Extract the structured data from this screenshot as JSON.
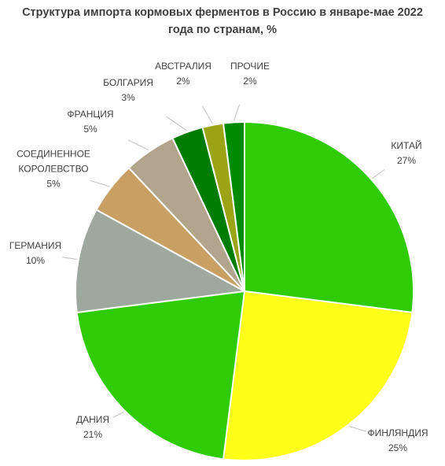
{
  "chart_data": {
    "type": "pie",
    "title": "Структура импорта кормовых ферментов в Россию в январе-мае 2022 года по странам, %",
    "categories": [
      "КИТАЙ",
      "ФИНЛЯНДИЯ",
      "ДАНИЯ",
      "ГЕРМАНИЯ",
      "СОЕДИНЕННОЕ КОРОЛЕВСТВО",
      "ФРАНЦИЯ",
      "БОЛГАРИЯ",
      "АВСТРАЛИЯ",
      "ПРОЧИЕ"
    ],
    "values": [
      27,
      25,
      21,
      10,
      5,
      5,
      3,
      2,
      2
    ],
    "value_labels": [
      "27%",
      "25%",
      "21%",
      "10%",
      "5%",
      "5%",
      "3%",
      "2%",
      "2%"
    ],
    "colors": [
      "#2fcc05",
      "#ffff19",
      "#2fcc05",
      "#9ea89e",
      "#c9a063",
      "#b3a48e",
      "#007d00",
      "#9aa414",
      "#008a00"
    ]
  }
}
